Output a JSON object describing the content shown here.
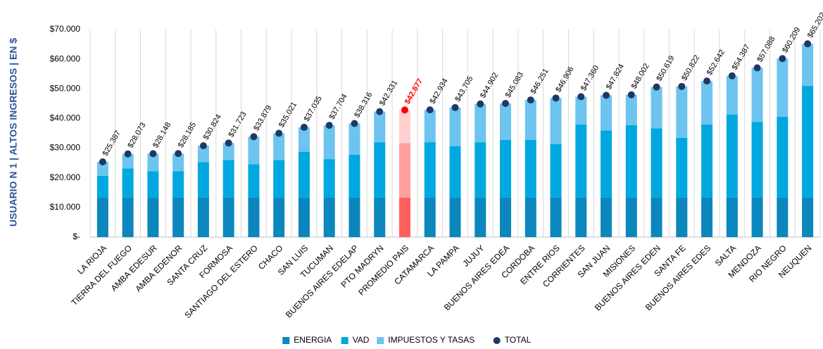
{
  "chart_data": {
    "type": "stacked_bar",
    "y_axis_title": "USUARIO N 1 | ALTOS INGRESOS | EN $",
    "categories": [
      "LA RIOJA",
      "TIERRA DEL FUEGO",
      "AMBA EDESUR",
      "AMBA EDENOR",
      "SANTA CRUZ",
      "FORMOSA",
      "SANTIAGO DEL ESTERO",
      "CHACO",
      "SAN LUIS",
      "TUCUMAN",
      "BUENOS AIRES EDELAP",
      "PTO MADRYN",
      "PROMEDIO PAIS",
      "CATAMARCA",
      "LA PAMPA",
      "JUJUY",
      "BUENOS AIRES EDEA",
      "CORDOBA",
      "ENTRE RIOS",
      "CORRIENTES",
      "SAN JUAN",
      "MISIONES",
      "BUENOS AIRES EDEN",
      "SANTA FE",
      "BUENOS AIRES EDES",
      "SALTA",
      "MENDOZA",
      "RIO NEGRO",
      "NEUQUEN"
    ],
    "series": [
      {
        "name": "ENERGIA",
        "color": "#0b87bd",
        "values": [
          13300,
          13300,
          13300,
          13300,
          13300,
          13300,
          13300,
          13300,
          13300,
          13300,
          13300,
          13300,
          13300,
          13300,
          13300,
          13300,
          13300,
          13300,
          13300,
          13300,
          13300,
          13300,
          13300,
          13300,
          13300,
          13300,
          13300,
          13300,
          13300
        ]
      },
      {
        "name": "VAD",
        "color": "#00a8df",
        "values": [
          7400,
          9900,
          8900,
          8900,
          12000,
          12700,
          11300,
          12700,
          15500,
          13000,
          14500,
          18700,
          18400,
          18700,
          17400,
          18700,
          19500,
          19500,
          18100,
          24700,
          22700,
          24500,
          23400,
          20200,
          24700,
          28000,
          25500,
          27300,
          37700
        ]
      },
      {
        "name": "IMPUESTOS Y TASAS",
        "color": "#6cc4ef",
        "values": [
          4687,
          4873,
          5948,
          5985,
          5524,
          5723,
          9279,
          9021,
          8235,
          11404,
          10516,
          10331,
          11177,
          10934,
          13005,
          12902,
          12283,
          13451,
          15506,
          9360,
          11824,
          10202,
          13919,
          17322,
          14642,
          13087,
          18288,
          19609,
          14202
        ]
      },
      {
        "name": "TOTAL",
        "color": "#1f3864",
        "marker": "dot",
        "values": [
          25387,
          28073,
          28148,
          28185,
          30824,
          31723,
          33879,
          35021,
          37035,
          37704,
          38316,
          42331,
          42877,
          42934,
          43705,
          44902,
          45083,
          46251,
          46906,
          47360,
          47824,
          48002,
          50619,
          50822,
          52642,
          54387,
          57088,
          60209,
          65202
        ],
        "value_labels": [
          "$25.387",
          "$28.073",
          "$28.148",
          "$28.185",
          "$30.824",
          "$31.723",
          "$33.879",
          "$35.021",
          "$37.035",
          "$37.704",
          "$38.316",
          "$42.331",
          "$42.877",
          "$42.934",
          "$43.705",
          "$44.902",
          "$45.083",
          "$46.251",
          "$46.906",
          "$47.360",
          "$47.824",
          "$48.002",
          "$50.619",
          "$50.822",
          "$52.642",
          "$54.387",
          "$57.088",
          "$60.209",
          "$65.202"
        ]
      }
    ],
    "highlight": {
      "category": "PROMEDIO PAIS",
      "colors": [
        "#ff5f5f",
        "#ff9f9f",
        "#ffd0d0",
        "#ff0000"
      ]
    },
    "ylim": [
      0,
      70000
    ],
    "yticks": [
      {
        "value": 0,
        "label": "$-"
      },
      {
        "value": 10000,
        "label": "$10.000"
      },
      {
        "value": 20000,
        "label": "$20.000"
      },
      {
        "value": 30000,
        "label": "$30.000"
      },
      {
        "value": 40000,
        "label": "$40.000"
      },
      {
        "value": 50000,
        "label": "$50.000"
      },
      {
        "value": 60000,
        "label": "$60.000"
      },
      {
        "value": 70000,
        "label": "$70.000"
      }
    ],
    "grid": "x",
    "legend": "bottom"
  }
}
